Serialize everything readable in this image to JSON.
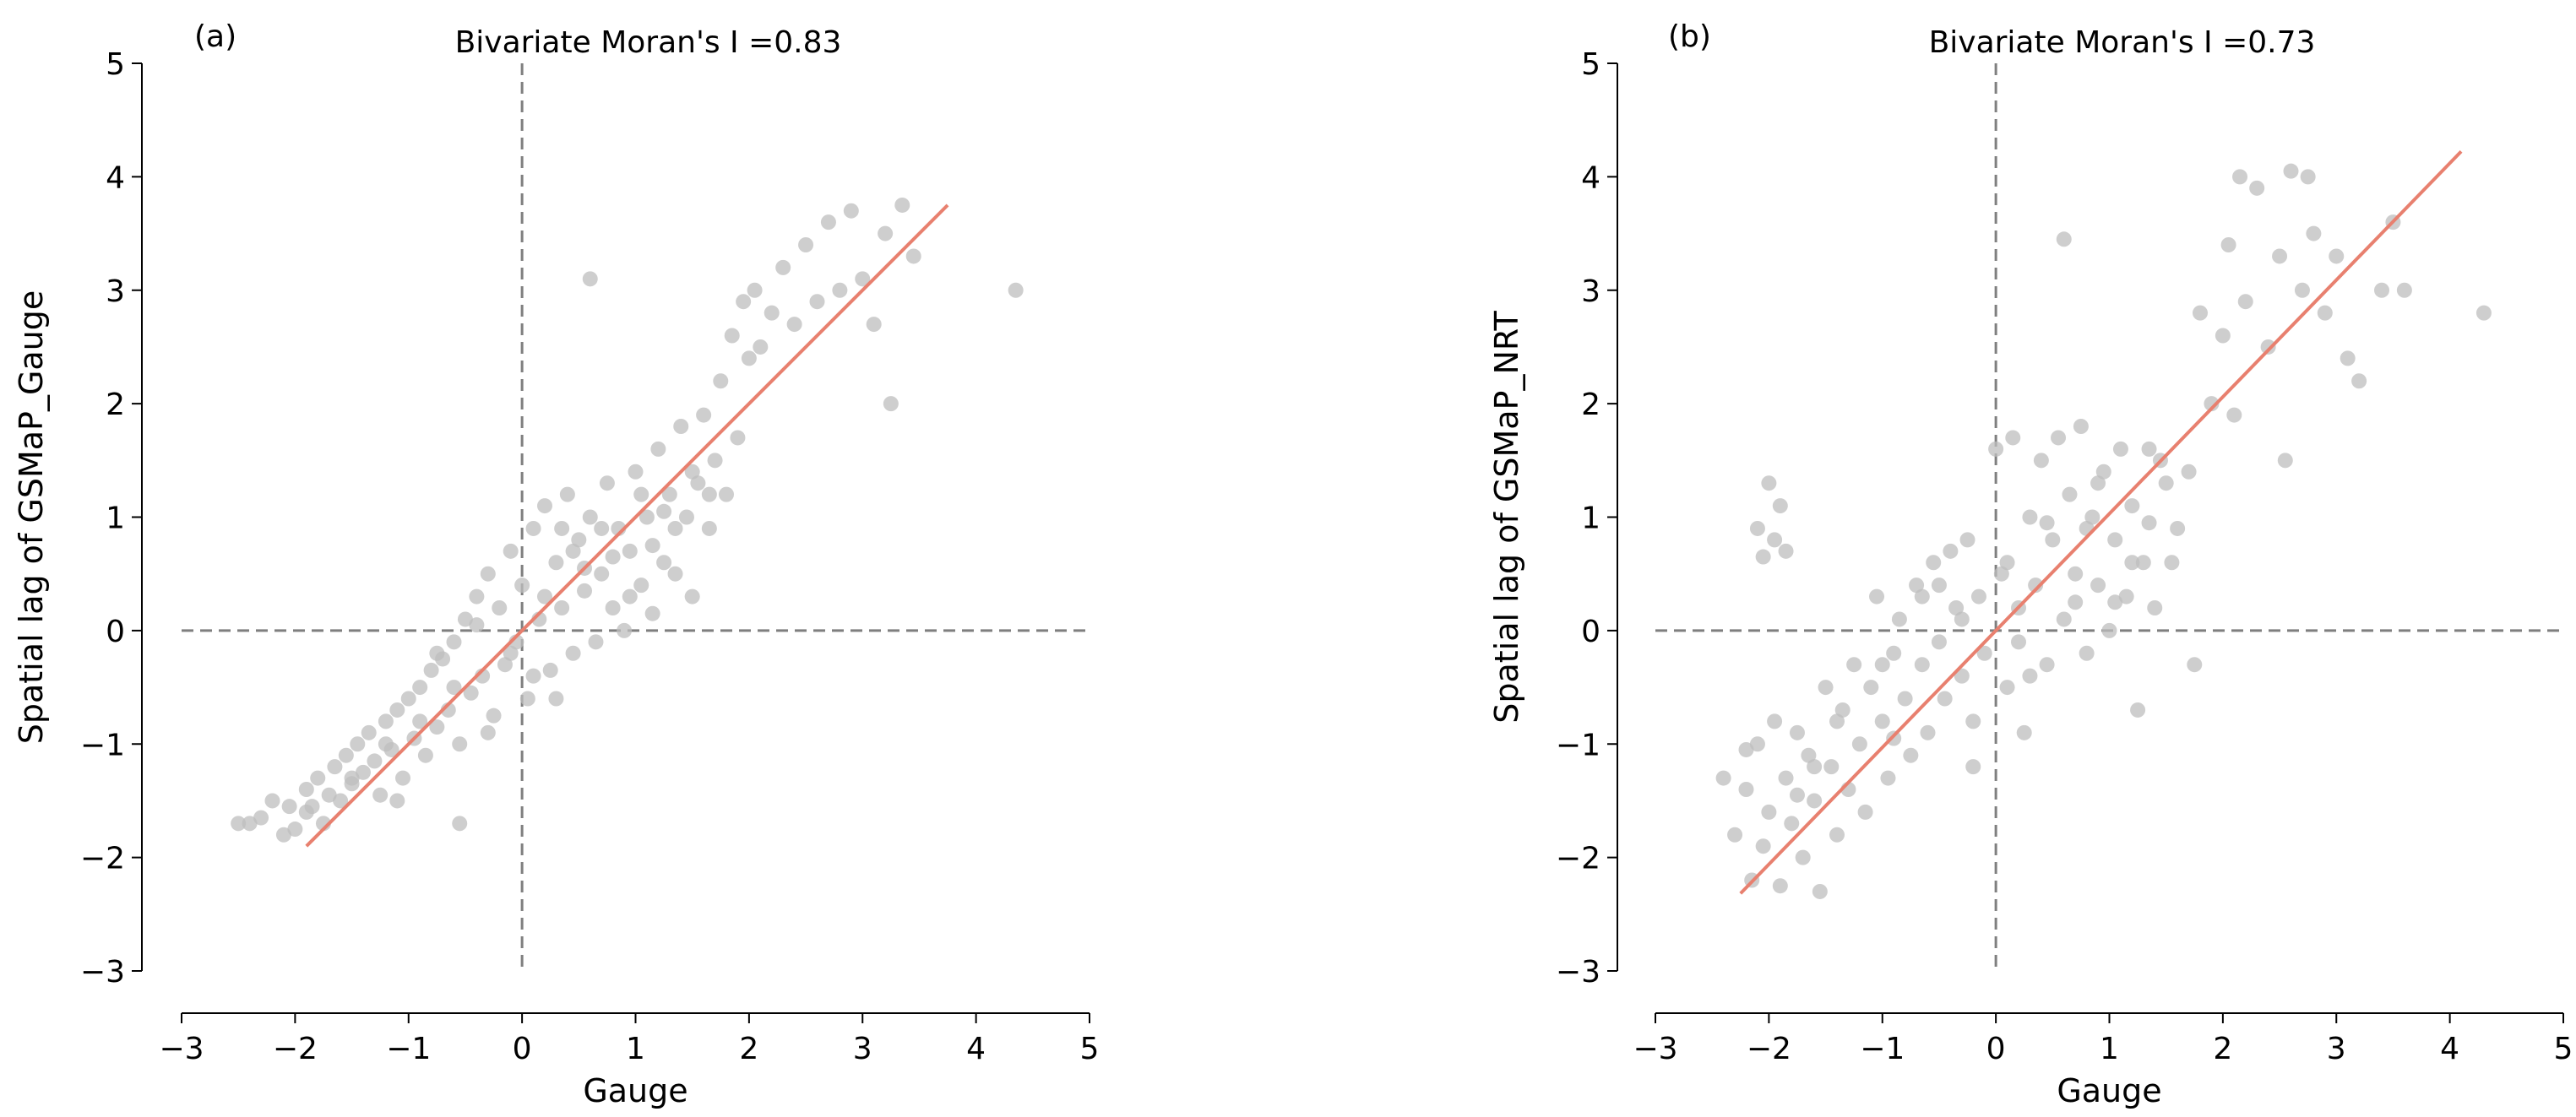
{
  "chart_data": [
    {
      "type": "scatter",
      "panel_label": "(a)",
      "title": "Bivariate Moran's I =0.83",
      "xlabel": "Gauge",
      "ylabel": "Spatial lag of GSMaP_Gauge",
      "xlim": [
        -3,
        5
      ],
      "ylim": [
        -3,
        5
      ],
      "xticks": [
        -3,
        -2,
        -1,
        0,
        1,
        2,
        3,
        4,
        5
      ],
      "yticks": [
        -3,
        -2,
        -1,
        0,
        1,
        2,
        3,
        4,
        5
      ],
      "xtick_labels": [
        "−3",
        "−2",
        "−1",
        "0",
        "1",
        "2",
        "3",
        "4",
        "5"
      ],
      "ytick_labels": [
        "−3",
        "−2",
        "−1",
        "0",
        "1",
        "2",
        "3",
        "4",
        "5"
      ],
      "reference_lines": {
        "x": 0,
        "y": 0,
        "style": "dashed"
      },
      "regression": {
        "slope": 1.0,
        "x_range": [
          -1.9,
          3.75
        ]
      },
      "point_color": "#bdbdbd",
      "line_color": "#e8806f",
      "points": [
        [
          -2.5,
          -1.7
        ],
        [
          -2.4,
          -1.7
        ],
        [
          -2.3,
          -1.65
        ],
        [
          -2.2,
          -1.5
        ],
        [
          -2.1,
          -1.8
        ],
        [
          -2.0,
          -1.75
        ],
        [
          -1.9,
          -1.6
        ],
        [
          -1.85,
          -1.55
        ],
        [
          -1.8,
          -1.3
        ],
        [
          -1.75,
          -1.7
        ],
        [
          -1.7,
          -1.45
        ],
        [
          -1.65,
          -1.2
        ],
        [
          -1.6,
          -1.5
        ],
        [
          -1.55,
          -1.1
        ],
        [
          -1.5,
          -1.35
        ],
        [
          -1.45,
          -1.0
        ],
        [
          -1.4,
          -1.25
        ],
        [
          -1.35,
          -0.9
        ],
        [
          -1.3,
          -1.15
        ],
        [
          -1.25,
          -1.45
        ],
        [
          -1.2,
          -0.8
        ],
        [
          -1.15,
          -1.05
        ],
        [
          -1.1,
          -0.7
        ],
        [
          -1.05,
          -1.3
        ],
        [
          -1.0,
          -0.6
        ],
        [
          -0.95,
          -0.95
        ],
        [
          -0.9,
          -0.5
        ],
        [
          -0.85,
          -1.1
        ],
        [
          -0.8,
          -0.35
        ],
        [
          -0.75,
          -0.85
        ],
        [
          -0.7,
          -0.25
        ],
        [
          -0.65,
          -0.7
        ],
        [
          -0.6,
          -0.1
        ],
        [
          -0.55,
          -1.0
        ],
        [
          -0.5,
          0.1
        ],
        [
          -0.45,
          -0.55
        ],
        [
          -0.4,
          0.3
        ],
        [
          -0.35,
          -0.4
        ],
        [
          -0.3,
          0.5
        ],
        [
          -0.25,
          -0.75
        ],
        [
          -0.2,
          0.2
        ],
        [
          -0.15,
          -0.3
        ],
        [
          -0.1,
          0.7
        ],
        [
          -0.05,
          -0.1
        ],
        [
          0.0,
          0.4
        ],
        [
          0.05,
          -0.6
        ],
        [
          0.1,
          0.9
        ],
        [
          0.15,
          0.1
        ],
        [
          0.2,
          1.1
        ],
        [
          0.25,
          -0.35
        ],
        [
          0.3,
          0.6
        ],
        [
          0.35,
          0.2
        ],
        [
          0.4,
          1.2
        ],
        [
          0.45,
          -0.2
        ],
        [
          0.5,
          0.8
        ],
        [
          0.55,
          0.35
        ],
        [
          0.6,
          1.0
        ],
        [
          0.65,
          -0.1
        ],
        [
          0.7,
          0.5
        ],
        [
          0.75,
          1.3
        ],
        [
          0.8,
          0.2
        ],
        [
          0.85,
          0.9
        ],
        [
          0.9,
          0.0
        ],
        [
          0.95,
          0.7
        ],
        [
          1.0,
          1.4
        ],
        [
          1.05,
          0.4
        ],
        [
          1.1,
          1.0
        ],
        [
          1.15,
          0.15
        ],
        [
          1.2,
          1.6
        ],
        [
          1.25,
          0.6
        ],
        [
          1.3,
          1.2
        ],
        [
          1.35,
          0.5
        ],
        [
          1.4,
          1.8
        ],
        [
          1.45,
          1.0
        ],
        [
          1.5,
          0.3
        ],
        [
          1.55,
          1.3
        ],
        [
          1.6,
          1.9
        ],
        [
          1.65,
          0.9
        ],
        [
          1.7,
          1.5
        ],
        [
          1.75,
          2.2
        ],
        [
          1.8,
          1.2
        ],
        [
          1.85,
          2.6
        ],
        [
          1.9,
          1.7
        ],
        [
          1.95,
          2.9
        ],
        [
          2.0,
          2.4
        ],
        [
          2.05,
          3.0
        ],
        [
          2.1,
          2.5
        ],
        [
          2.2,
          2.8
        ],
        [
          2.3,
          3.2
        ],
        [
          2.4,
          2.7
        ],
        [
          2.5,
          3.4
        ],
        [
          2.6,
          2.9
        ],
        [
          2.7,
          3.6
        ],
        [
          2.8,
          3.0
        ],
        [
          2.9,
          3.7
        ],
        [
          3.0,
          3.1
        ],
        [
          3.1,
          2.7
        ],
        [
          3.2,
          3.5
        ],
        [
          3.25,
          2.0
        ],
        [
          3.35,
          3.75
        ],
        [
          3.45,
          3.3
        ],
        [
          4.35,
          3.0
        ],
        [
          0.6,
          3.1
        ],
        [
          -0.55,
          -1.7
        ],
        [
          -1.9,
          -1.4
        ],
        [
          -2.05,
          -1.55
        ],
        [
          -0.3,
          -0.9
        ],
        [
          0.3,
          -0.6
        ],
        [
          0.45,
          0.7
        ],
        [
          0.2,
          0.3
        ],
        [
          -0.1,
          -0.2
        ],
        [
          0.7,
          0.9
        ],
        [
          0.95,
          0.3
        ],
        [
          1.25,
          1.05
        ],
        [
          1.5,
          1.4
        ],
        [
          -0.6,
          -0.5
        ],
        [
          -0.9,
          -0.8
        ],
        [
          -1.2,
          -1.0
        ],
        [
          -1.5,
          -1.3
        ],
        [
          -0.75,
          -0.2
        ],
        [
          0.1,
          -0.4
        ],
        [
          0.35,
          0.9
        ],
        [
          0.55,
          0.55
        ],
        [
          0.8,
          0.65
        ],
        [
          1.05,
          1.2
        ],
        [
          1.15,
          0.75
        ],
        [
          1.35,
          0.9
        ],
        [
          1.65,
          1.2
        ],
        [
          -1.1,
          -1.5
        ],
        [
          -0.4,
          0.05
        ]
      ]
    },
    {
      "type": "scatter",
      "panel_label": "(b)",
      "title": "Bivariate Moran's I =0.73",
      "xlabel": "Gauge",
      "ylabel": "Spatial lag of GSMaP_NRT",
      "xlim": [
        -3,
        5
      ],
      "ylim": [
        -3,
        5
      ],
      "xticks": [
        -3,
        -2,
        -1,
        0,
        1,
        2,
        3,
        4,
        5
      ],
      "yticks": [
        -3,
        -2,
        -1,
        0,
        1,
        2,
        3,
        4,
        5
      ],
      "xtick_labels": [
        "−3",
        "−2",
        "−1",
        "0",
        "1",
        "2",
        "3",
        "4",
        "5"
      ],
      "ytick_labels": [
        "−3",
        "−2",
        "−1",
        "0",
        "1",
        "2",
        "3",
        "4",
        "5"
      ],
      "reference_lines": {
        "x": 0,
        "y": 0,
        "style": "dashed"
      },
      "regression": {
        "slope": 1.03,
        "x_range": [
          -2.25,
          4.1
        ]
      },
      "point_color": "#bdbdbd",
      "line_color": "#e8806f",
      "points": [
        [
          -2.4,
          -1.3
        ],
        [
          -2.3,
          -1.8
        ],
        [
          -2.2,
          -1.4
        ],
        [
          -2.15,
          -2.2
        ],
        [
          -2.1,
          -1.0
        ],
        [
          -2.05,
          -1.9
        ],
        [
          -2.0,
          -1.6
        ],
        [
          -1.95,
          -0.8
        ],
        [
          -1.9,
          -2.25
        ],
        [
          -1.85,
          -1.3
        ],
        [
          -1.8,
          -1.7
        ],
        [
          -1.75,
          -0.9
        ],
        [
          -1.7,
          -2.0
        ],
        [
          -1.65,
          -1.1
        ],
        [
          -1.6,
          -1.5
        ],
        [
          -1.55,
          -2.3
        ],
        [
          -1.5,
          -0.5
        ],
        [
          -1.45,
          -1.2
        ],
        [
          -1.4,
          -1.8
        ],
        [
          -1.35,
          -0.7
        ],
        [
          -1.3,
          -1.4
        ],
        [
          -1.25,
          -0.3
        ],
        [
          -1.2,
          -1.0
        ],
        [
          -1.15,
          -1.6
        ],
        [
          -1.1,
          -0.5
        ],
        [
          -1.05,
          0.3
        ],
        [
          -1.0,
          -0.8
        ],
        [
          -0.95,
          -1.3
        ],
        [
          -0.9,
          -0.2
        ],
        [
          -0.85,
          0.1
        ],
        [
          -0.8,
          -0.6
        ],
        [
          -0.75,
          -1.1
        ],
        [
          -0.7,
          0.4
        ],
        [
          -0.65,
          -0.3
        ],
        [
          -0.6,
          -0.9
        ],
        [
          -0.55,
          0.6
        ],
        [
          -0.5,
          -0.1
        ],
        [
          -0.45,
          -0.6
        ],
        [
          -0.4,
          0.7
        ],
        [
          -0.35,
          0.2
        ],
        [
          -0.3,
          -0.4
        ],
        [
          -0.25,
          0.8
        ],
        [
          -0.2,
          -0.8
        ],
        [
          -0.15,
          0.3
        ],
        [
          -0.1,
          -0.2
        ],
        [
          0.0,
          1.6
        ],
        [
          0.05,
          0.5
        ],
        [
          0.1,
          -0.5
        ],
        [
          0.15,
          1.7
        ],
        [
          0.2,
          0.2
        ],
        [
          0.25,
          -0.9
        ],
        [
          0.3,
          1.0
        ],
        [
          0.35,
          0.4
        ],
        [
          0.4,
          1.5
        ],
        [
          0.45,
          -0.3
        ],
        [
          0.5,
          0.8
        ],
        [
          0.55,
          1.7
        ],
        [
          0.6,
          0.1
        ],
        [
          0.65,
          1.2
        ],
        [
          0.7,
          0.5
        ],
        [
          0.75,
          1.8
        ],
        [
          0.8,
          -0.2
        ],
        [
          0.85,
          1.0
        ],
        [
          0.9,
          0.4
        ],
        [
          0.95,
          1.4
        ],
        [
          1.0,
          0.0
        ],
        [
          1.05,
          0.8
        ],
        [
          1.1,
          1.6
        ],
        [
          1.15,
          0.3
        ],
        [
          1.2,
          1.1
        ],
        [
          1.25,
          -0.7
        ],
        [
          1.3,
          0.6
        ],
        [
          1.35,
          1.6
        ],
        [
          1.4,
          0.2
        ],
        [
          1.5,
          1.3
        ],
        [
          1.6,
          0.9
        ],
        [
          1.7,
          1.4
        ],
        [
          1.8,
          2.8
        ],
        [
          1.9,
          2.0
        ],
        [
          2.0,
          2.6
        ],
        [
          2.05,
          3.4
        ],
        [
          2.1,
          1.9
        ],
        [
          2.15,
          4.0
        ],
        [
          2.2,
          2.9
        ],
        [
          2.3,
          3.9
        ],
        [
          2.4,
          2.5
        ],
        [
          2.5,
          3.3
        ],
        [
          2.55,
          1.5
        ],
        [
          2.6,
          4.05
        ],
        [
          2.7,
          3.0
        ],
        [
          2.8,
          3.5
        ],
        [
          2.9,
          2.8
        ],
        [
          3.0,
          3.3
        ],
        [
          3.1,
          2.4
        ],
        [
          3.2,
          2.2
        ],
        [
          3.4,
          3.0
        ],
        [
          3.5,
          3.6
        ],
        [
          3.6,
          3.0
        ],
        [
          4.3,
          2.8
        ],
        [
          2.75,
          4.0
        ],
        [
          -2.0,
          1.3
        ],
        [
          -2.1,
          0.9
        ],
        [
          -1.9,
          1.1
        ],
        [
          -1.85,
          0.7
        ],
        [
          -2.05,
          0.65
        ],
        [
          -1.95,
          0.8
        ],
        [
          0.6,
          3.45
        ],
        [
          -0.2,
          -1.2
        ],
        [
          0.3,
          -0.4
        ],
        [
          0.8,
          0.9
        ],
        [
          1.05,
          0.25
        ],
        [
          1.35,
          0.95
        ],
        [
          -0.5,
          0.4
        ],
        [
          -1.0,
          -0.3
        ],
        [
          -1.4,
          -0.8
        ],
        [
          -1.6,
          -1.2
        ],
        [
          -0.3,
          0.1
        ],
        [
          0.1,
          0.6
        ],
        [
          0.45,
          0.95
        ],
        [
          1.2,
          0.6
        ],
        [
          -2.2,
          -1.05
        ],
        [
          -1.75,
          -1.45
        ],
        [
          -0.9,
          -0.95
        ],
        [
          0.2,
          -0.1
        ],
        [
          0.7,
          0.25
        ],
        [
          1.55,
          0.6
        ],
        [
          1.75,
          -0.3
        ],
        [
          -0.65,
          0.3
        ],
        [
          0.9,
          1.3
        ],
        [
          1.45,
          1.5
        ]
      ]
    }
  ]
}
